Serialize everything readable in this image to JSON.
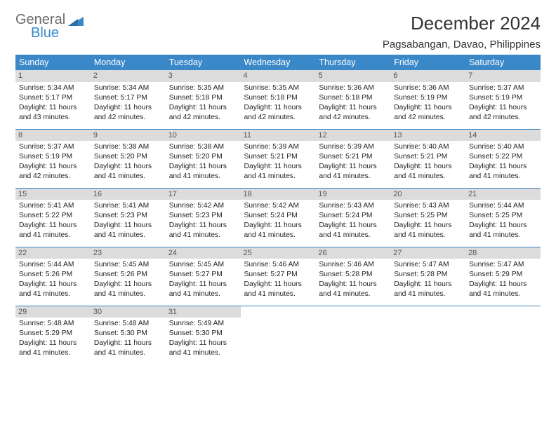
{
  "logo": {
    "general": "General",
    "blue": "Blue"
  },
  "title": "December 2024",
  "location": "Pagsabangan, Davao, Philippines",
  "colors": {
    "header_bg": "#3a88c8",
    "header_text": "#ffffff",
    "daynum_bg": "#dcdcdc",
    "daynum_text": "#555555",
    "border": "#3a88c8",
    "body_text": "#222222",
    "logo_gray": "#6b6b6b",
    "logo_blue": "#3a88c8"
  },
  "day_headers": [
    "Sunday",
    "Monday",
    "Tuesday",
    "Wednesday",
    "Thursday",
    "Friday",
    "Saturday"
  ],
  "weeks": [
    [
      {
        "n": "1",
        "sr": "Sunrise: 5:34 AM",
        "ss": "Sunset: 5:17 PM",
        "dl": "Daylight: 11 hours and 43 minutes."
      },
      {
        "n": "2",
        "sr": "Sunrise: 5:34 AM",
        "ss": "Sunset: 5:17 PM",
        "dl": "Daylight: 11 hours and 42 minutes."
      },
      {
        "n": "3",
        "sr": "Sunrise: 5:35 AM",
        "ss": "Sunset: 5:18 PM",
        "dl": "Daylight: 11 hours and 42 minutes."
      },
      {
        "n": "4",
        "sr": "Sunrise: 5:35 AM",
        "ss": "Sunset: 5:18 PM",
        "dl": "Daylight: 11 hours and 42 minutes."
      },
      {
        "n": "5",
        "sr": "Sunrise: 5:36 AM",
        "ss": "Sunset: 5:18 PM",
        "dl": "Daylight: 11 hours and 42 minutes."
      },
      {
        "n": "6",
        "sr": "Sunrise: 5:36 AM",
        "ss": "Sunset: 5:19 PM",
        "dl": "Daylight: 11 hours and 42 minutes."
      },
      {
        "n": "7",
        "sr": "Sunrise: 5:37 AM",
        "ss": "Sunset: 5:19 PM",
        "dl": "Daylight: 11 hours and 42 minutes."
      }
    ],
    [
      {
        "n": "8",
        "sr": "Sunrise: 5:37 AM",
        "ss": "Sunset: 5:19 PM",
        "dl": "Daylight: 11 hours and 42 minutes."
      },
      {
        "n": "9",
        "sr": "Sunrise: 5:38 AM",
        "ss": "Sunset: 5:20 PM",
        "dl": "Daylight: 11 hours and 41 minutes."
      },
      {
        "n": "10",
        "sr": "Sunrise: 5:38 AM",
        "ss": "Sunset: 5:20 PM",
        "dl": "Daylight: 11 hours and 41 minutes."
      },
      {
        "n": "11",
        "sr": "Sunrise: 5:39 AM",
        "ss": "Sunset: 5:21 PM",
        "dl": "Daylight: 11 hours and 41 minutes."
      },
      {
        "n": "12",
        "sr": "Sunrise: 5:39 AM",
        "ss": "Sunset: 5:21 PM",
        "dl": "Daylight: 11 hours and 41 minutes."
      },
      {
        "n": "13",
        "sr": "Sunrise: 5:40 AM",
        "ss": "Sunset: 5:21 PM",
        "dl": "Daylight: 11 hours and 41 minutes."
      },
      {
        "n": "14",
        "sr": "Sunrise: 5:40 AM",
        "ss": "Sunset: 5:22 PM",
        "dl": "Daylight: 11 hours and 41 minutes."
      }
    ],
    [
      {
        "n": "15",
        "sr": "Sunrise: 5:41 AM",
        "ss": "Sunset: 5:22 PM",
        "dl": "Daylight: 11 hours and 41 minutes."
      },
      {
        "n": "16",
        "sr": "Sunrise: 5:41 AM",
        "ss": "Sunset: 5:23 PM",
        "dl": "Daylight: 11 hours and 41 minutes."
      },
      {
        "n": "17",
        "sr": "Sunrise: 5:42 AM",
        "ss": "Sunset: 5:23 PM",
        "dl": "Daylight: 11 hours and 41 minutes."
      },
      {
        "n": "18",
        "sr": "Sunrise: 5:42 AM",
        "ss": "Sunset: 5:24 PM",
        "dl": "Daylight: 11 hours and 41 minutes."
      },
      {
        "n": "19",
        "sr": "Sunrise: 5:43 AM",
        "ss": "Sunset: 5:24 PM",
        "dl": "Daylight: 11 hours and 41 minutes."
      },
      {
        "n": "20",
        "sr": "Sunrise: 5:43 AM",
        "ss": "Sunset: 5:25 PM",
        "dl": "Daylight: 11 hours and 41 minutes."
      },
      {
        "n": "21",
        "sr": "Sunrise: 5:44 AM",
        "ss": "Sunset: 5:25 PM",
        "dl": "Daylight: 11 hours and 41 minutes."
      }
    ],
    [
      {
        "n": "22",
        "sr": "Sunrise: 5:44 AM",
        "ss": "Sunset: 5:26 PM",
        "dl": "Daylight: 11 hours and 41 minutes."
      },
      {
        "n": "23",
        "sr": "Sunrise: 5:45 AM",
        "ss": "Sunset: 5:26 PM",
        "dl": "Daylight: 11 hours and 41 minutes."
      },
      {
        "n": "24",
        "sr": "Sunrise: 5:45 AM",
        "ss": "Sunset: 5:27 PM",
        "dl": "Daylight: 11 hours and 41 minutes."
      },
      {
        "n": "25",
        "sr": "Sunrise: 5:46 AM",
        "ss": "Sunset: 5:27 PM",
        "dl": "Daylight: 11 hours and 41 minutes."
      },
      {
        "n": "26",
        "sr": "Sunrise: 5:46 AM",
        "ss": "Sunset: 5:28 PM",
        "dl": "Daylight: 11 hours and 41 minutes."
      },
      {
        "n": "27",
        "sr": "Sunrise: 5:47 AM",
        "ss": "Sunset: 5:28 PM",
        "dl": "Daylight: 11 hours and 41 minutes."
      },
      {
        "n": "28",
        "sr": "Sunrise: 5:47 AM",
        "ss": "Sunset: 5:29 PM",
        "dl": "Daylight: 11 hours and 41 minutes."
      }
    ],
    [
      {
        "n": "29",
        "sr": "Sunrise: 5:48 AM",
        "ss": "Sunset: 5:29 PM",
        "dl": "Daylight: 11 hours and 41 minutes."
      },
      {
        "n": "30",
        "sr": "Sunrise: 5:48 AM",
        "ss": "Sunset: 5:30 PM",
        "dl": "Daylight: 11 hours and 41 minutes."
      },
      {
        "n": "31",
        "sr": "Sunrise: 5:49 AM",
        "ss": "Sunset: 5:30 PM",
        "dl": "Daylight: 11 hours and 41 minutes."
      },
      null,
      null,
      null,
      null
    ]
  ]
}
